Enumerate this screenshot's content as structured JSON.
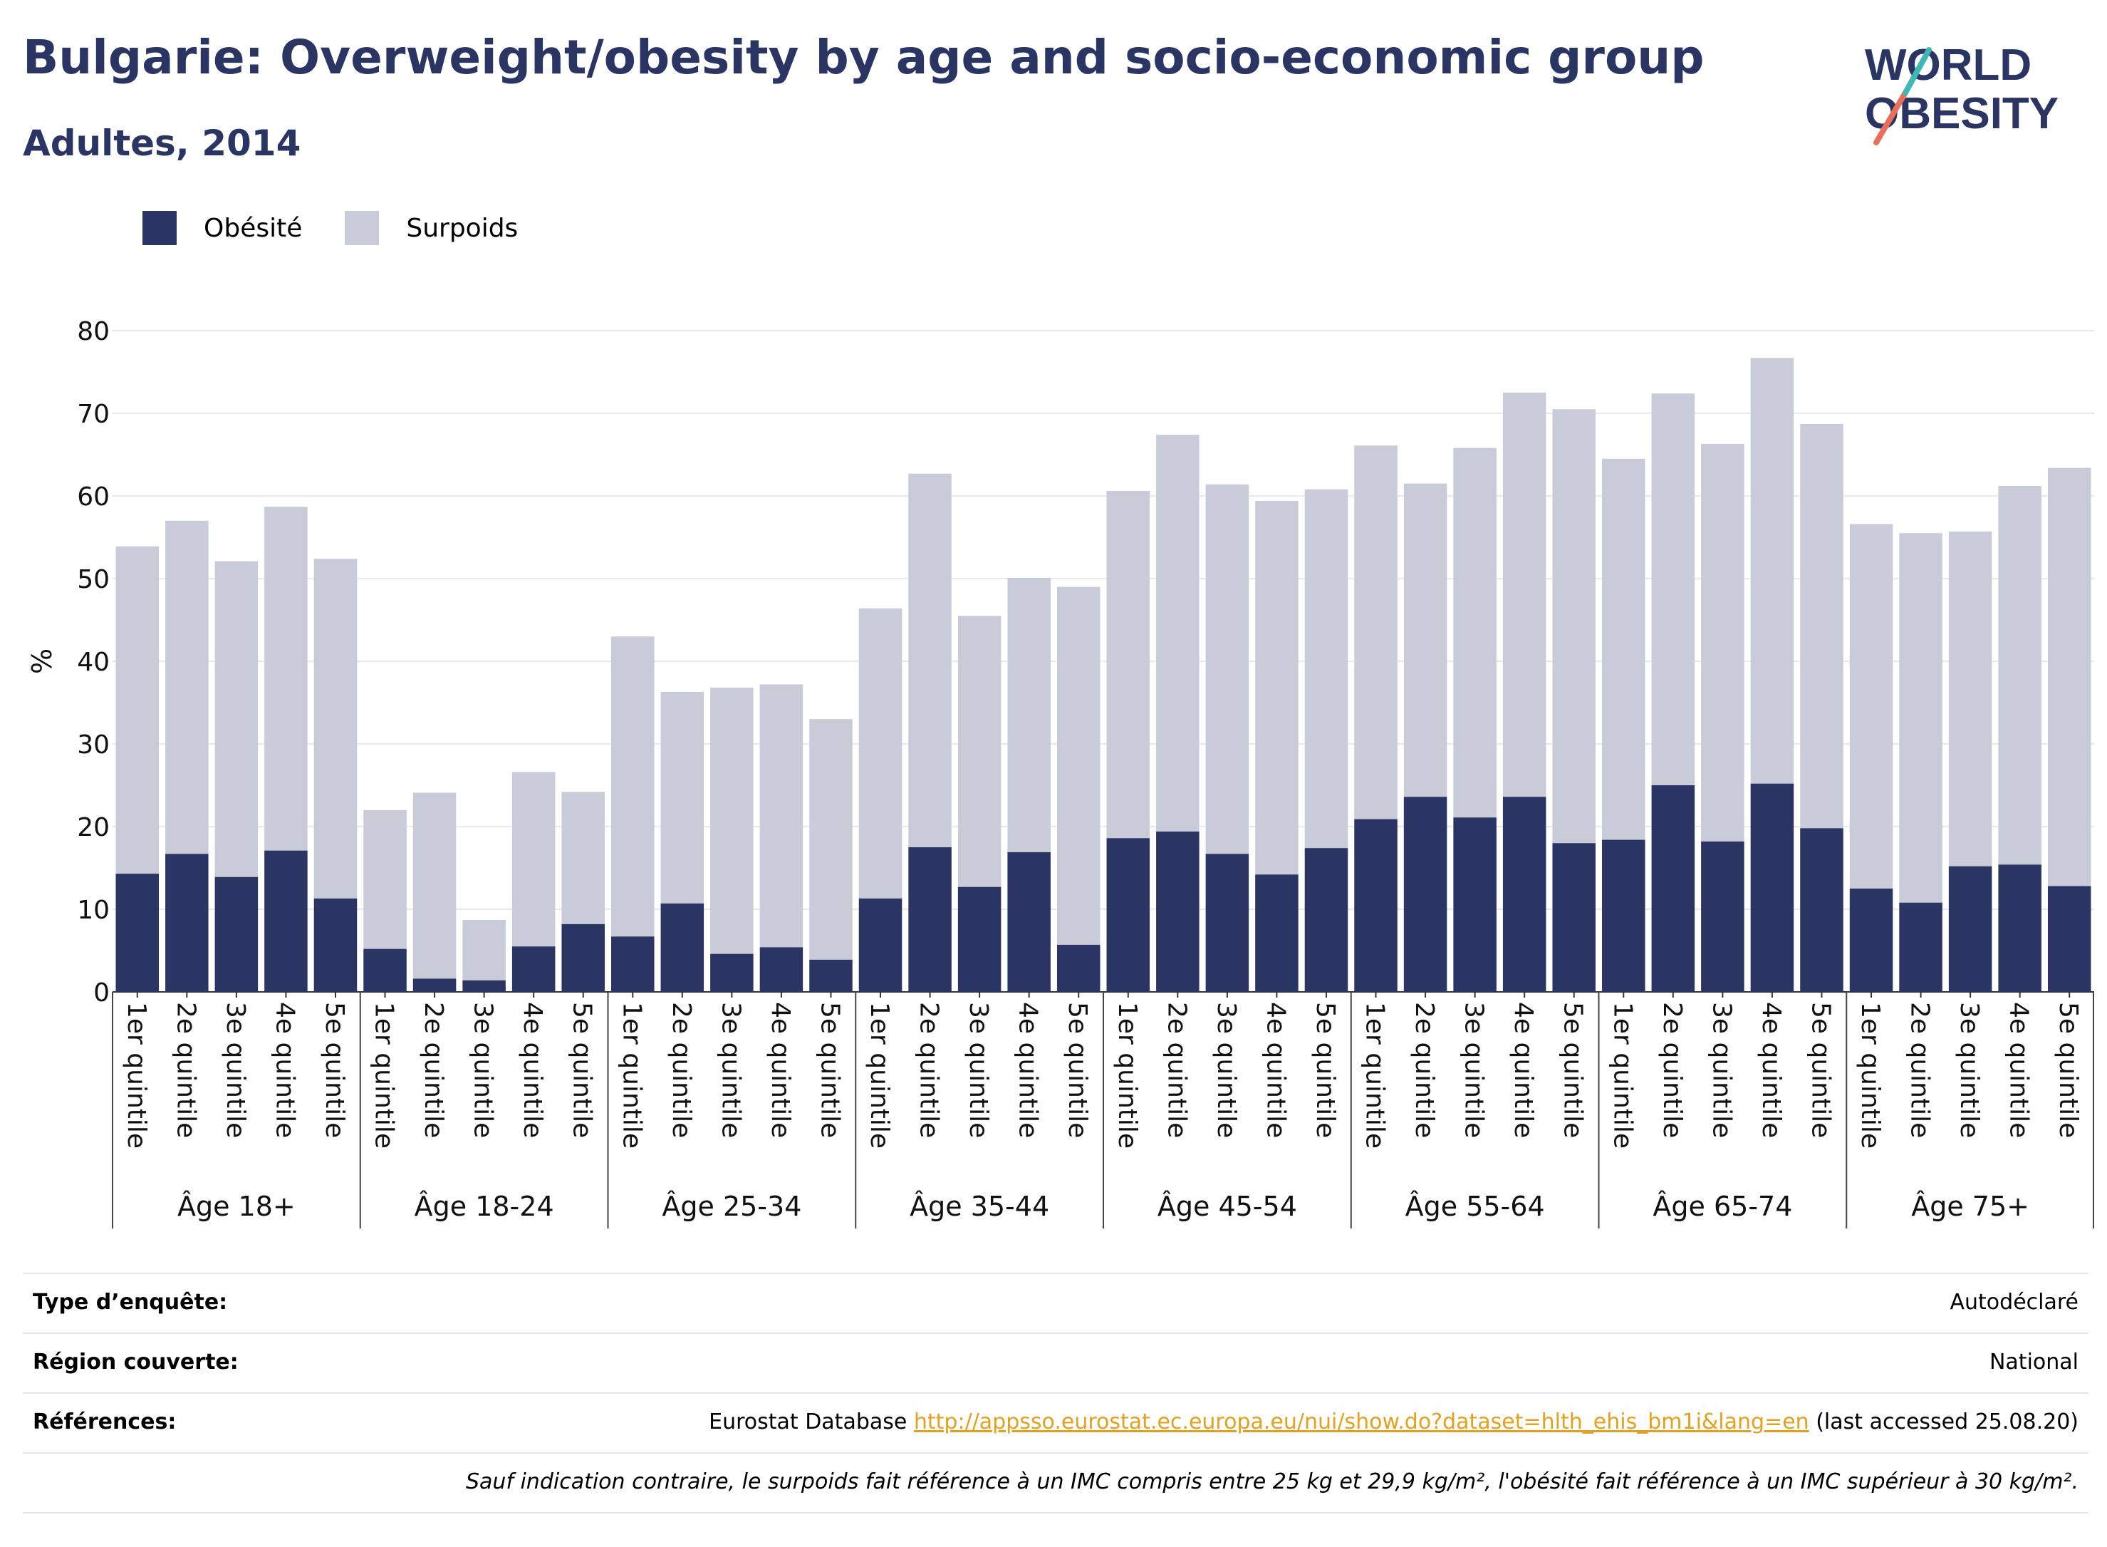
{
  "header": {
    "title": "Bulgarie: Overweight/obesity by age and socio-economic group",
    "subtitle": "Adultes, 2014"
  },
  "logo": {
    "line1": "WORLD",
    "line2": "OBESITY"
  },
  "colors": {
    "obesity": "#2a3563",
    "overweight": "#c9cbd8",
    "title": "#2a3563",
    "link": "#e3a11d"
  },
  "legend": {
    "obesity_label": "Obésité",
    "overweight_label": "Surpoids"
  },
  "chart_data": {
    "type": "bar",
    "stacked": true,
    "ylabel": "%",
    "ylim": [
      0,
      80
    ],
    "yticks": [
      0,
      10,
      20,
      30,
      40,
      50,
      60,
      70,
      80
    ],
    "grid": true,
    "legend_position": "top-left",
    "groups": [
      {
        "label": "Âge 18+",
        "categories": [
          "1er quintile",
          "2e quintile",
          "3e quintile",
          "4e quintile",
          "5e quintile"
        ],
        "obesity": [
          14.3,
          16.7,
          13.9,
          17.1,
          11.3
        ],
        "overweight": [
          39.6,
          40.3,
          38.2,
          41.6,
          41.1
        ]
      },
      {
        "label": "Âge 18-24",
        "categories": [
          "1er quintile",
          "2e quintile",
          "3e quintile",
          "4e quintile",
          "5e quintile"
        ],
        "obesity": [
          5.2,
          1.6,
          1.4,
          5.5,
          8.2
        ],
        "overweight": [
          16.8,
          22.5,
          7.3,
          21.1,
          16.0
        ]
      },
      {
        "label": "Âge 25-34",
        "categories": [
          "1er quintile",
          "2e quintile",
          "3e quintile",
          "4e quintile",
          "5e quintile"
        ],
        "obesity": [
          6.7,
          10.7,
          4.6,
          5.4,
          3.9
        ],
        "overweight": [
          36.3,
          25.6,
          32.2,
          31.8,
          29.1
        ]
      },
      {
        "label": "Âge 35-44",
        "categories": [
          "1er quintile",
          "2e quintile",
          "3e quintile",
          "4e quintile",
          "5e quintile"
        ],
        "obesity": [
          11.3,
          17.5,
          12.7,
          16.9,
          5.7
        ],
        "overweight": [
          35.1,
          45.2,
          32.8,
          33.2,
          43.3
        ]
      },
      {
        "label": "Âge 45-54",
        "categories": [
          "1er quintile",
          "2e quintile",
          "3e quintile",
          "4e quintile",
          "5e quintile"
        ],
        "obesity": [
          18.6,
          19.4,
          16.7,
          14.2,
          17.4
        ],
        "overweight": [
          42.0,
          48.0,
          44.7,
          45.2,
          43.4
        ]
      },
      {
        "label": "Âge 55-64",
        "categories": [
          "1er quintile",
          "2e quintile",
          "3e quintile",
          "4e quintile",
          "5e quintile"
        ],
        "obesity": [
          20.9,
          23.6,
          21.1,
          23.6,
          18.0
        ],
        "overweight": [
          45.2,
          37.9,
          44.7,
          48.9,
          52.5
        ]
      },
      {
        "label": "Âge 65-74",
        "categories": [
          "1er quintile",
          "2e quintile",
          "3e quintile",
          "4e quintile",
          "5e quintile"
        ],
        "obesity": [
          18.4,
          25.0,
          18.2,
          25.2,
          19.8
        ],
        "overweight": [
          46.1,
          47.4,
          48.1,
          51.5,
          48.9
        ]
      },
      {
        "label": "Âge 75+",
        "categories": [
          "1er quintile",
          "2e quintile",
          "3e quintile",
          "4e quintile",
          "5e quintile"
        ],
        "obesity": [
          12.5,
          10.8,
          15.2,
          15.4,
          12.8
        ],
        "overweight": [
          44.1,
          44.7,
          40.5,
          45.8,
          50.6
        ]
      }
    ]
  },
  "info": {
    "survey_type_label": "Type d’enquête:",
    "survey_type_value": "Autodéclaré",
    "region_label": "Région couverte:",
    "region_value": "National",
    "references_label": "Références:",
    "references_prefix": "Eurostat Database ",
    "references_link": "http://appsso.eurostat.ec.europa.eu/nui/show.do?dataset=hlth_ehis_bm1i&lang=en",
    "references_suffix": " (last accessed 25.08.20)",
    "note": "Sauf indication contraire, le surpoids fait référence à un IMC compris entre 25 kg et 29,9 kg/m², l'obésité fait référence à un IMC supérieur à 30 kg/m²."
  }
}
